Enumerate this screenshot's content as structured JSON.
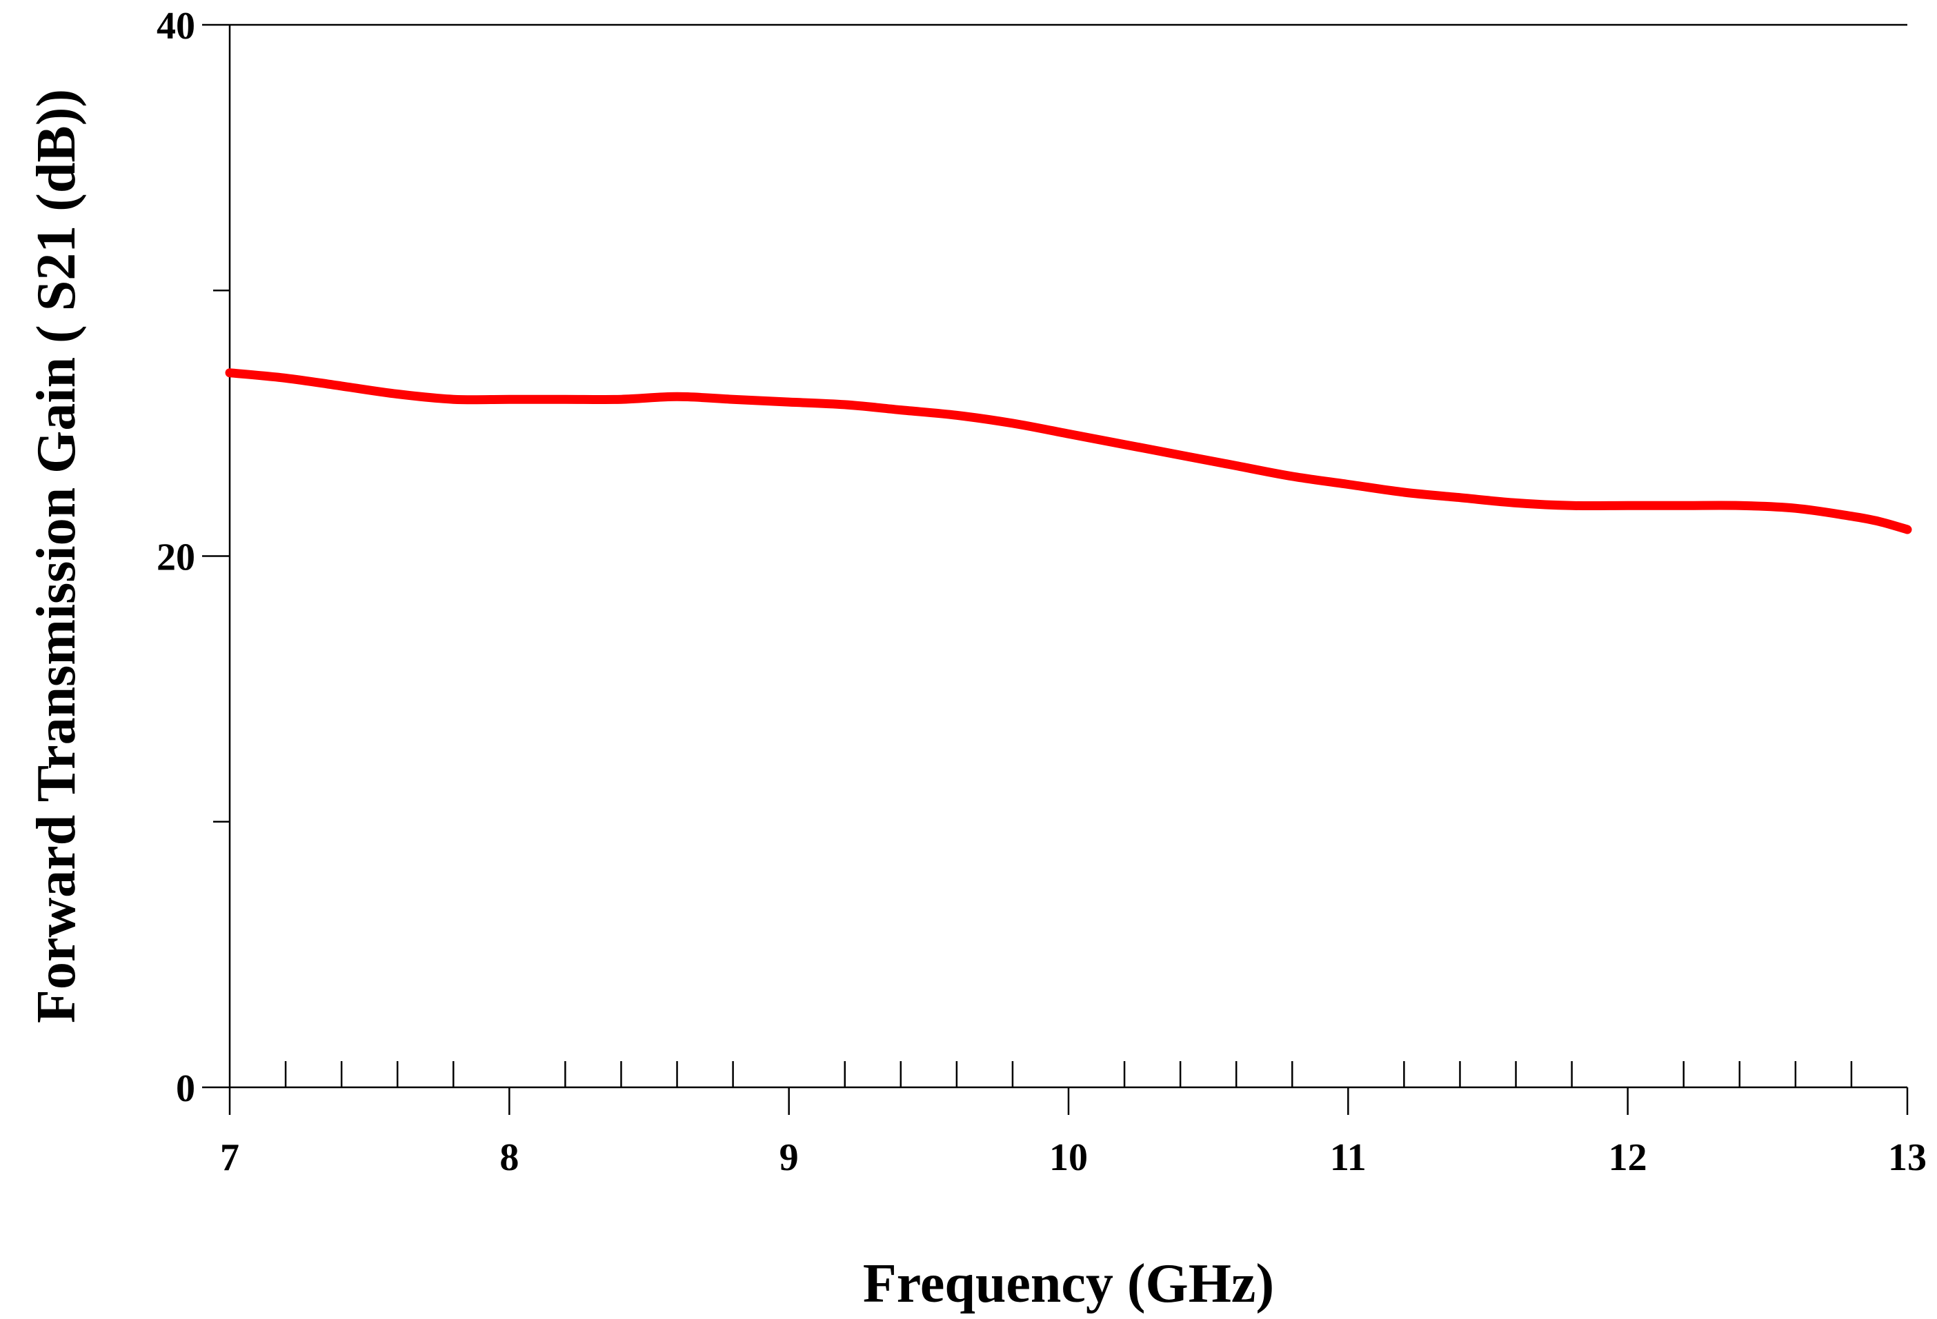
{
  "chart_data": {
    "type": "line",
    "title": "",
    "xlabel": "Frequency (GHz)",
    "ylabel": "Forward Transmission Gain ( S21 (dB))",
    "xlim": [
      7,
      13
    ],
    "ylim": [
      0,
      40
    ],
    "x_major_ticks": [
      7,
      8,
      9,
      10,
      11,
      12,
      13
    ],
    "x_tick_labels": [
      "7",
      "8",
      "9",
      "10",
      "11",
      "12",
      "13"
    ],
    "x_minor_tick_step": 0.2,
    "y_major_ticks": [
      0,
      20,
      40
    ],
    "y_tick_labels": [
      "0",
      "20",
      "40"
    ],
    "y_minor_ticks": [
      10,
      30
    ],
    "grid": false,
    "legend": "none",
    "series": [
      {
        "color": "#ff0000",
        "x": [
          7.0,
          7.2,
          7.4,
          7.6,
          7.8,
          8.0,
          8.2,
          8.4,
          8.6,
          8.8,
          9.0,
          9.2,
          9.4,
          9.6,
          9.8,
          10.0,
          10.2,
          10.4,
          10.6,
          10.8,
          11.0,
          11.2,
          11.4,
          11.6,
          11.8,
          12.0,
          12.2,
          12.4,
          12.6,
          12.8,
          12.9,
          13.0
        ],
        "y": [
          26.9,
          26.7,
          26.4,
          26.1,
          25.9,
          25.9,
          25.9,
          25.9,
          26.0,
          25.9,
          25.8,
          25.7,
          25.5,
          25.3,
          25.0,
          24.6,
          24.2,
          23.8,
          23.4,
          23.0,
          22.7,
          22.4,
          22.2,
          22.0,
          21.9,
          21.9,
          21.9,
          21.9,
          21.8,
          21.5,
          21.3,
          21.0
        ]
      }
    ]
  }
}
